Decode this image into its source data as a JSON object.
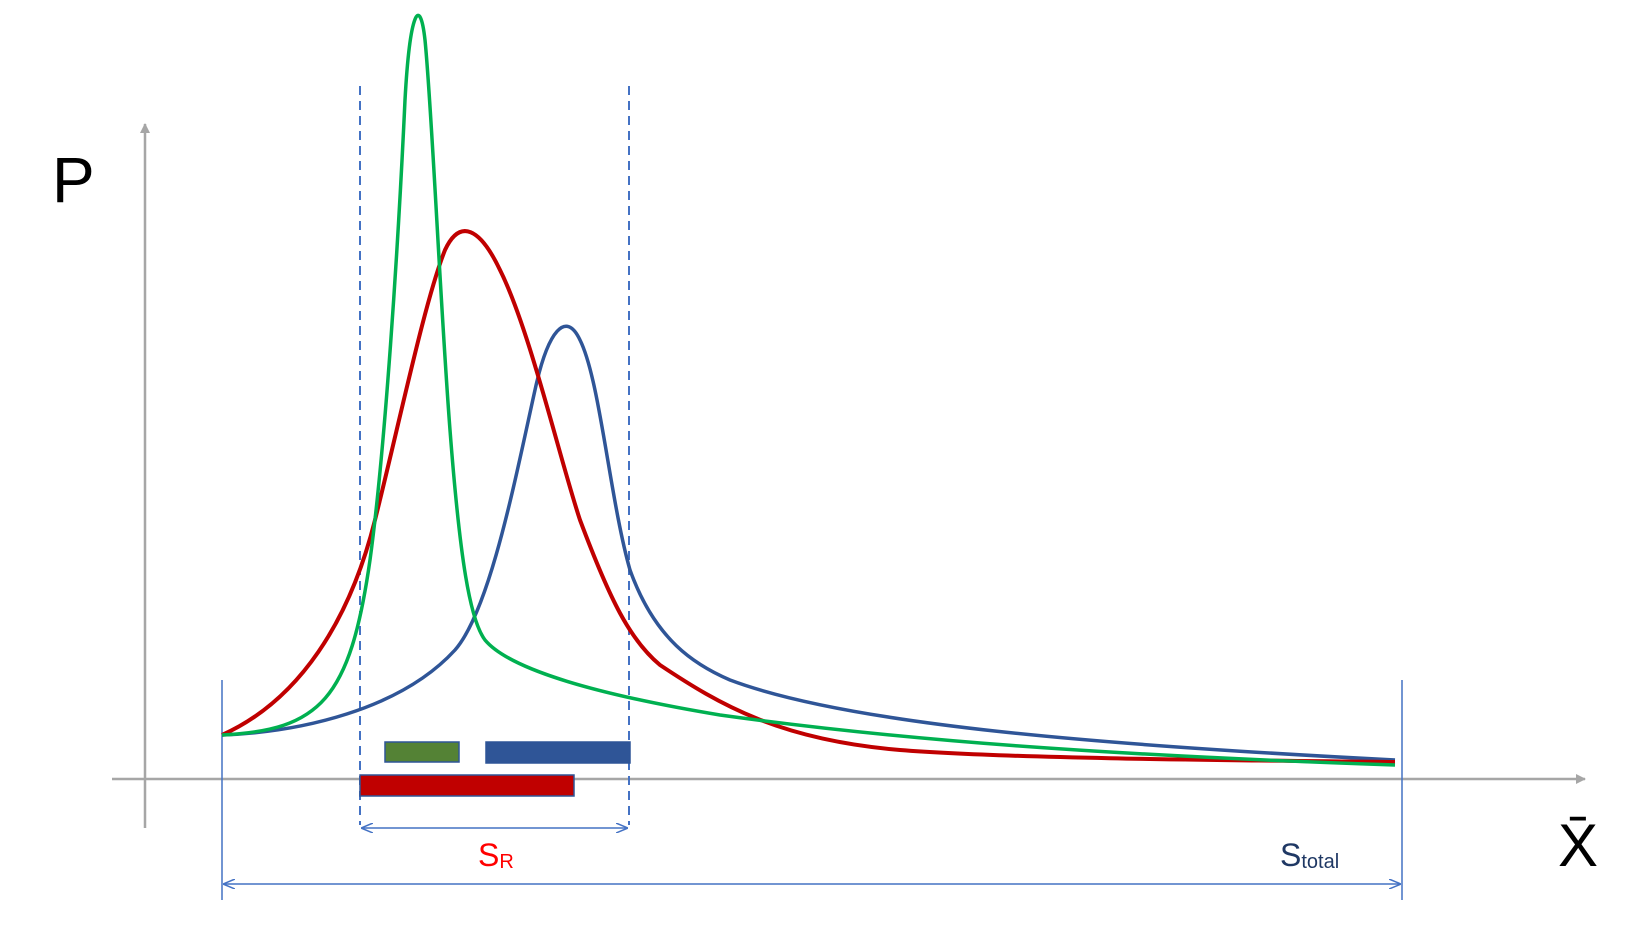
{
  "labels": {
    "y_axis": "P",
    "x_axis": "X̄",
    "s_r_main": "S",
    "s_r_sub": "R",
    "s_total_main": "S",
    "s_total_sub": "total"
  },
  "colors": {
    "axis": "#a6a6a6",
    "red": "#c00000",
    "green": "#00b050",
    "blue": "#2f5597",
    "green_bar": "#548235",
    "dim_line": "#4472c4",
    "s_r_text": "#ff0000",
    "s_total_text": "#1f3864"
  }
}
